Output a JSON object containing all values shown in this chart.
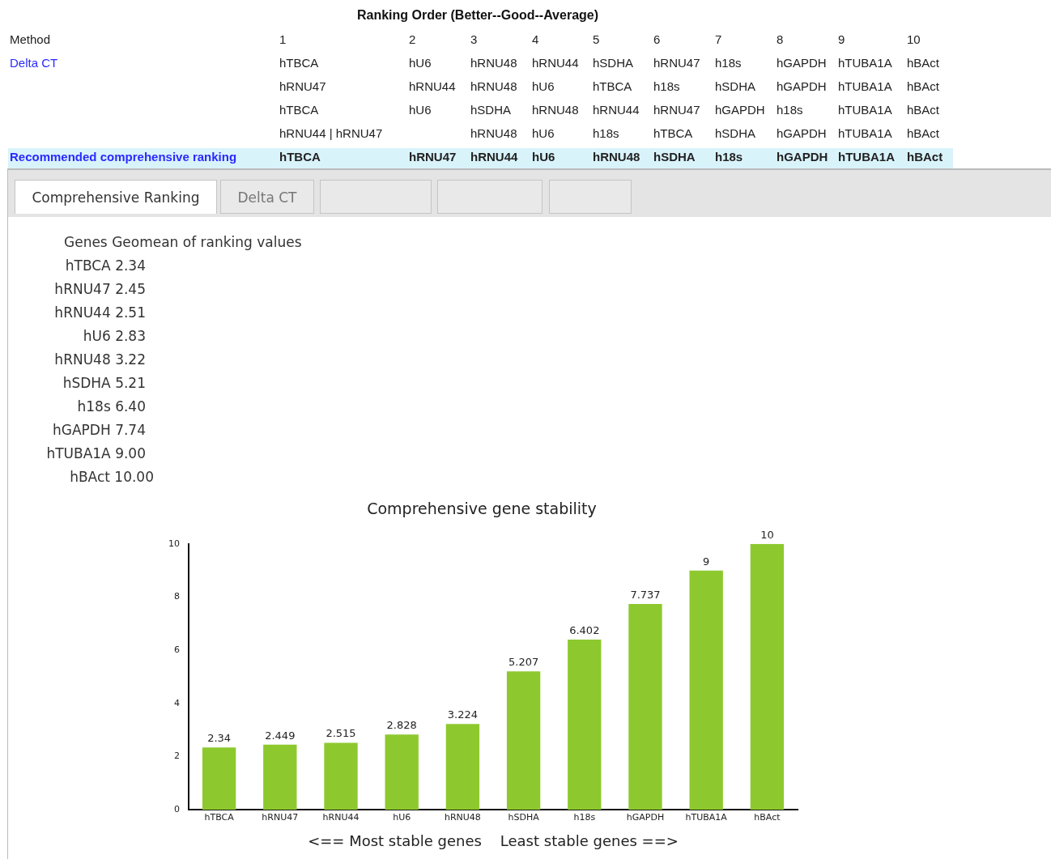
{
  "chart_data": {
    "type": "bar",
    "title": "Comprehensive gene stability",
    "xlabel": "<== Most stable genes    Least stable genes ==>",
    "categories": [
      "hTBCA",
      "hRNU47",
      "hRNU44",
      "hU6",
      "hRNU48",
      "hSDHA",
      "h18s",
      "hGAPDH",
      "hTUBA1A",
      "hBAct"
    ],
    "values": [
      2.34,
      2.449,
      2.515,
      2.828,
      3.224,
      5.207,
      6.402,
      7.737,
      9,
      10
    ],
    "color": "#8dc92e",
    "ylim": [
      0,
      10
    ],
    "yticks": [
      0,
      2,
      4,
      6,
      8,
      10
    ],
    "grid": false,
    "legend": false,
    "data_labels": true,
    "annotations": [
      "Ranking Order (Better--Good--Average)",
      "Method\t1\t2\t3\t4\t5\t6\t7\t8\t9\t10",
      "Delta CT\thTBCA\thU6\thRNU48\thRNU44\thSDHA\thRNU47\th18s\thGAPDH\thTUBA1A\thBAct",
      "\thRNU47\thRNU44\thRNU48\thU6\thTBCA\th18s\thSDHA\thGAPDH\thTUBA1A\thBAct",
      "\thTBCA\thU6\thSDHA\thRNU48\thRNU44\thRNU47\thGAPDH\th18s\thTUBA1A\thBAct",
      "\thRNU44 | hRNU47\t\thRNU48\thU6\th18s\thTBCA\thSDHA\thGAPDH\thTUBA1A\thBAct",
      "Recommended comprehensive ranking\thTBCA\thRNU47\thRNU44\thU6\thRNU48\thSDHA\th18s\thGAPDH\thTUBA1A\thBAct",
      "Comprehensive Ranking\tDelta CT\t\t\t",
      "Genes Geomean of ranking values",
      "hTBCA 2.34",
      "hRNU47 2.45",
      "hRNU44 2.51",
      "hU6 2.83",
      "hRNU48 3.22",
      "hSDHA 5.21",
      "h18s 6.40",
      "hGAPDH 7.74",
      "hTUBA1A 9.00",
      "hBAct 10.00"
    ]
  }
}
